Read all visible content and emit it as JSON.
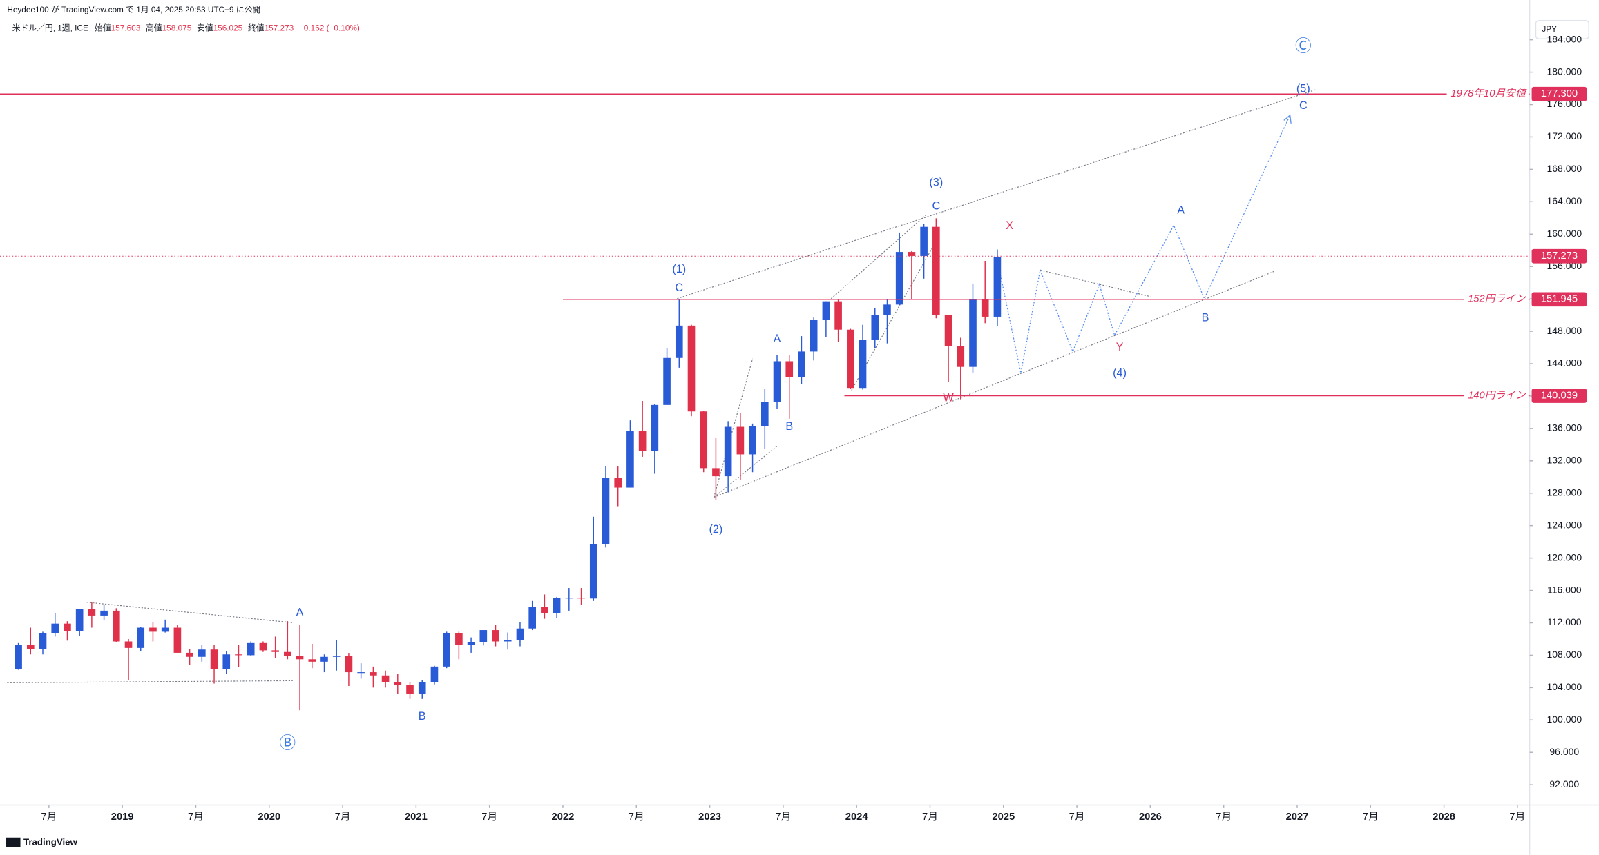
{
  "header": {
    "publisher": "Heydee100 が TradingView.com で 1月 04, 2025 20:53 UTC+9 に公開",
    "symbol": "米ドル／円, 1週, ICE",
    "open_label": "始値",
    "open": 157.603,
    "high_label": "高値",
    "high": 158.075,
    "low_label": "安値",
    "low": 156.025,
    "close_label": "終値",
    "close": 157.273,
    "change": "−0.162 (−0.10%)"
  },
  "currency": "JPY",
  "footer": "TradingView",
  "chart_data": {
    "type": "candlestick",
    "up_color": "#2a5bd7",
    "down_color": "#e0314b",
    "grid": false,
    "xlim": [
      "2018-03",
      "2028-08"
    ],
    "ylim": [
      89.5,
      188.9
    ],
    "yticks": [
      {
        "value": 184,
        "label": "184.000"
      },
      {
        "value": 180,
        "label": "180.000"
      },
      {
        "value": 176,
        "label": "176.000"
      },
      {
        "value": 172,
        "label": "172.000"
      },
      {
        "value": 168,
        "label": "168.000"
      },
      {
        "value": 164,
        "label": "164.000"
      },
      {
        "value": 160,
        "label": "160.000"
      },
      {
        "value": 156,
        "label": "156.000"
      },
      {
        "value": 152,
        "label": "152.000"
      },
      {
        "value": 148,
        "label": "148.000"
      },
      {
        "value": 144,
        "label": "144.000"
      },
      {
        "value": 140,
        "label": "140.000"
      },
      {
        "value": 136,
        "label": "136.000"
      },
      {
        "value": 132,
        "label": "132.000"
      },
      {
        "value": 128,
        "label": "128.000"
      },
      {
        "value": 124,
        "label": "124.000"
      },
      {
        "value": 120,
        "label": "120.000"
      },
      {
        "value": 116,
        "label": "116.000"
      },
      {
        "value": 112,
        "label": "112.000"
      },
      {
        "value": 108,
        "label": "108.000"
      },
      {
        "value": 104,
        "label": "104.000"
      },
      {
        "value": 100,
        "label": "100.000"
      },
      {
        "value": 96,
        "label": "96.000"
      },
      {
        "value": 92,
        "label": "92.000"
      }
    ],
    "xticks": [
      {
        "value": "2018-07",
        "label": "7月"
      },
      {
        "value": "2019-01",
        "label": "2019"
      },
      {
        "value": "2019-07",
        "label": "7月"
      },
      {
        "value": "2020-01",
        "label": "2020"
      },
      {
        "value": "2020-07",
        "label": "7月"
      },
      {
        "value": "2021-01",
        "label": "2021"
      },
      {
        "value": "2021-07",
        "label": "7月"
      },
      {
        "value": "2022-01",
        "label": "2022"
      },
      {
        "value": "2022-07",
        "label": "7月"
      },
      {
        "value": "2023-01",
        "label": "2023"
      },
      {
        "value": "2023-07",
        "label": "7月"
      },
      {
        "value": "2024-01",
        "label": "2024"
      },
      {
        "value": "2024-07",
        "label": "7月"
      },
      {
        "value": "2025-01",
        "label": "2025"
      },
      {
        "value": "2025-07",
        "label": "7月"
      },
      {
        "value": "2026-01",
        "label": "2026"
      },
      {
        "value": "2026-07",
        "label": "7月"
      },
      {
        "value": "2027-01",
        "label": "2027"
      },
      {
        "value": "2027-07",
        "label": "7月"
      },
      {
        "value": "2028-01",
        "label": "2028"
      },
      {
        "value": "2028-07",
        "label": "7月"
      }
    ],
    "x": [
      "2018-04",
      "2018-05",
      "2018-06",
      "2018-07",
      "2018-08",
      "2018-09",
      "2018-10",
      "2018-11",
      "2018-12",
      "2019-01",
      "2019-02",
      "2019-03",
      "2019-04",
      "2019-05",
      "2019-06",
      "2019-07",
      "2019-08",
      "2019-09",
      "2019-10",
      "2019-11",
      "2019-12",
      "2020-01",
      "2020-02",
      "2020-03",
      "2020-04",
      "2020-05",
      "2020-06",
      "2020-07",
      "2020-08",
      "2020-09",
      "2020-10",
      "2020-11",
      "2020-12",
      "2021-01",
      "2021-02",
      "2021-03",
      "2021-04",
      "2021-05",
      "2021-06",
      "2021-07",
      "2021-08",
      "2021-09",
      "2021-10",
      "2021-11",
      "2021-12",
      "2022-01",
      "2022-02",
      "2022-03",
      "2022-04",
      "2022-05",
      "2022-06",
      "2022-07",
      "2022-08",
      "2022-09",
      "2022-10",
      "2022-11",
      "2022-12",
      "2023-01",
      "2023-02",
      "2023-03",
      "2023-04",
      "2023-05",
      "2023-06",
      "2023-07",
      "2023-08",
      "2023-09",
      "2023-10",
      "2023-11",
      "2023-12",
      "2024-01",
      "2024-02",
      "2024-03",
      "2024-04",
      "2024-05",
      "2024-06",
      "2024-07",
      "2024-08",
      "2024-09",
      "2024-10",
      "2024-11",
      "2024-12"
    ],
    "open": [
      106.3,
      109.3,
      108.8,
      110.7,
      111.9,
      111.0,
      113.7,
      112.9,
      113.5,
      109.7,
      108.9,
      111.4,
      110.9,
      111.4,
      108.3,
      107.8,
      108.7,
      106.3,
      108.1,
      108.0,
      109.5,
      108.6,
      108.4,
      107.9,
      107.5,
      107.2,
      107.8,
      107.9,
      105.9,
      105.9,
      105.5,
      104.7,
      104.3,
      103.2,
      104.7,
      106.6,
      110.7,
      109.3,
      109.6,
      111.1,
      109.7,
      109.9,
      111.3,
      114.0,
      113.2,
      115.1,
      115.1,
      115.0,
      121.7,
      129.9,
      128.7,
      135.7,
      133.2,
      138.9,
      144.7,
      148.7,
      138.1,
      131.1,
      130.1,
      136.2,
      132.8,
      136.3,
      139.3,
      144.3,
      142.3,
      145.5,
      149.4,
      151.7,
      148.2,
      141.0,
      146.9,
      150.0,
      151.3,
      157.8,
      157.3,
      160.9,
      150.0,
      146.2,
      143.6,
      152.0,
      149.8
    ],
    "high": [
      109.5,
      111.4,
      110.9,
      113.2,
      112.2,
      113.7,
      114.6,
      114.2,
      113.8,
      110.0,
      111.5,
      112.1,
      112.4,
      111.7,
      108.8,
      109.3,
      109.3,
      108.5,
      109.3,
      109.7,
      109.7,
      110.3,
      112.2,
      111.7,
      109.4,
      108.1,
      109.9,
      108.2,
      107.0,
      106.6,
      106.1,
      105.7,
      104.7,
      104.9,
      106.7,
      110.9,
      110.9,
      110.2,
      111.1,
      111.7,
      110.8,
      112.1,
      114.7,
      115.5,
      115.2,
      116.3,
      116.3,
      125.1,
      131.3,
      131.3,
      137.0,
      139.4,
      139.0,
      145.9,
      151.9,
      148.8,
      138.2,
      134.8,
      136.9,
      137.9,
      136.6,
      140.9,
      145.1,
      145.1,
      147.4,
      149.7,
      151.7,
      151.9,
      148.3,
      148.8,
      150.9,
      151.97,
      160.2,
      157.9,
      161.3,
      161.95,
      150.0,
      147.2,
      153.9,
      156.7,
      158.1
    ],
    "low": [
      106.2,
      108.1,
      108.1,
      110.3,
      109.8,
      110.4,
      111.4,
      112.3,
      109.6,
      104.9,
      108.5,
      109.7,
      110.8,
      108.3,
      106.8,
      107.2,
      104.5,
      105.7,
      106.5,
      107.9,
      108.4,
      107.7,
      107.5,
      101.2,
      106.4,
      105.9,
      106.1,
      104.2,
      105.1,
      104.0,
      104.0,
      103.2,
      102.6,
      102.6,
      104.4,
      106.4,
      107.5,
      108.3,
      109.2,
      109.1,
      108.7,
      109.1,
      111.1,
      112.5,
      112.6,
      113.5,
      114.2,
      114.7,
      121.3,
      126.4,
      128.7,
      132.5,
      130.4,
      138.9,
      143.5,
      137.5,
      130.6,
      127.2,
      128.1,
      129.6,
      130.6,
      133.5,
      138.4,
      137.2,
      141.5,
      144.4,
      147.3,
      146.7,
      140.9,
      140.8,
      145.9,
      146.5,
      151.2,
      151.9,
      154.5,
      149.6,
      141.7,
      139.6,
      142.9,
      149.0,
      148.6
    ],
    "close": [
      109.3,
      108.8,
      110.7,
      111.9,
      111.0,
      113.7,
      112.9,
      113.5,
      109.7,
      108.9,
      111.4,
      110.9,
      111.4,
      108.3,
      107.8,
      108.7,
      106.3,
      108.1,
      108.0,
      109.5,
      108.6,
      108.4,
      107.9,
      107.5,
      107.2,
      107.8,
      107.9,
      105.9,
      105.9,
      105.5,
      104.7,
      104.3,
      103.2,
      104.7,
      106.6,
      110.7,
      109.3,
      109.6,
      111.1,
      109.7,
      109.9,
      111.3,
      114.0,
      113.2,
      115.1,
      115.1,
      115.0,
      121.7,
      129.9,
      128.7,
      135.7,
      133.2,
      138.9,
      144.7,
      148.7,
      138.1,
      131.1,
      130.1,
      136.2,
      132.8,
      136.3,
      139.3,
      144.3,
      142.3,
      145.5,
      149.4,
      151.7,
      148.2,
      141.0,
      146.9,
      150.0,
      151.3,
      157.8,
      157.3,
      160.9,
      150.0,
      146.2,
      143.6,
      152.0,
      149.8,
      157.2
    ],
    "levels": [
      {
        "value": 177.3,
        "label": "177.300",
        "name": "1978年10月安値",
        "from": "2018-03"
      },
      {
        "value": 151.945,
        "label": "151.945",
        "name": "152円ライン",
        "from": "2022-01"
      },
      {
        "value": 140.039,
        "label": "140.039",
        "name": "140円ライン",
        "from": "2023-12"
      }
    ],
    "last_price": {
      "value": 157.273,
      "label": "157.273"
    },
    "annotations": [
      {
        "text": "Ⓒ",
        "x": "2027-01",
        "y": 183.1,
        "color": "#3b7be0"
      },
      {
        "text": "(5)",
        "x": "2027-01",
        "y": 177.9,
        "color": "#2a5bd7"
      },
      {
        "text": "C",
        "x": "2027-01",
        "y": 175.8,
        "color": "#2a5bd7"
      },
      {
        "text": "(3)",
        "x": "2024-07",
        "y": 166.3,
        "color": "#2a5bd7"
      },
      {
        "text": "C",
        "x": "2024-07",
        "y": 163.4,
        "color": "#2a5bd7"
      },
      {
        "text": "X",
        "x": "2025-01",
        "y": 161.0,
        "color": "#e0315c"
      },
      {
        "text": "A",
        "x": "2026-03",
        "y": 162.9,
        "color": "#2a5bd7"
      },
      {
        "text": "(1)",
        "x": "2022-10",
        "y": 155.6,
        "color": "#2a5bd7"
      },
      {
        "text": "C",
        "x": "2022-10",
        "y": 153.3,
        "color": "#2a5bd7"
      },
      {
        "text": "A",
        "x": "2023-06",
        "y": 147.0,
        "color": "#2a5bd7"
      },
      {
        "text": "B",
        "x": "2023-07",
        "y": 136.2,
        "color": "#2a5bd7"
      },
      {
        "text": "B",
        "x": "2026-05",
        "y": 149.6,
        "color": "#2a5bd7"
      },
      {
        "text": "Y",
        "x": "2025-10",
        "y": 146.0,
        "color": "#e0315c"
      },
      {
        "text": "(4)",
        "x": "2025-10",
        "y": 142.8,
        "color": "#2a5bd7"
      },
      {
        "text": "W",
        "x": "2024-08",
        "y": 139.7,
        "color": "#e0315c"
      },
      {
        "text": "(2)",
        "x": "2023-01",
        "y": 123.5,
        "color": "#2a5bd7"
      },
      {
        "text": "A",
        "x": "2020-03",
        "y": 113.2,
        "color": "#2a5bd7"
      },
      {
        "text": "B",
        "x": "2021-01",
        "y": 100.4,
        "color": "#2a5bd7"
      },
      {
        "text": "Ⓑ",
        "x": "2020-02",
        "y": 97.0,
        "color": "#3b7be0"
      }
    ]
  }
}
